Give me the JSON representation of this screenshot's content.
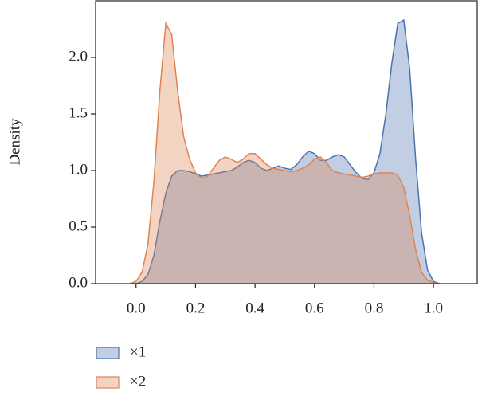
{
  "chart_data": {
    "type": "area",
    "ylabel": "Density",
    "x": [
      -0.02,
      0.0,
      0.02,
      0.04,
      0.06,
      0.08,
      0.1,
      0.12,
      0.14,
      0.16,
      0.18,
      0.2,
      0.22,
      0.24,
      0.26,
      0.28,
      0.3,
      0.32,
      0.34,
      0.36,
      0.38,
      0.4,
      0.42,
      0.44,
      0.46,
      0.48,
      0.5,
      0.52,
      0.54,
      0.56,
      0.58,
      0.6,
      0.62,
      0.64,
      0.66,
      0.68,
      0.7,
      0.72,
      0.74,
      0.76,
      0.78,
      0.8,
      0.82,
      0.84,
      0.86,
      0.88,
      0.9,
      0.92,
      0.94,
      0.96,
      0.98,
      1.0,
      1.02
    ],
    "series": [
      {
        "name": "×1",
        "color": "#4c72b0",
        "values": [
          0,
          0.0,
          0.02,
          0.08,
          0.25,
          0.55,
          0.8,
          0.95,
          1.0,
          1.0,
          0.99,
          0.97,
          0.95,
          0.96,
          0.97,
          0.98,
          0.99,
          1.0,
          1.03,
          1.07,
          1.09,
          1.07,
          1.02,
          1.0,
          1.02,
          1.04,
          1.02,
          1.01,
          1.05,
          1.12,
          1.17,
          1.15,
          1.09,
          1.09,
          1.12,
          1.14,
          1.12,
          1.05,
          0.98,
          0.93,
          0.92,
          0.98,
          1.15,
          1.5,
          1.95,
          2.3,
          2.33,
          1.9,
          1.1,
          0.45,
          0.12,
          0.02,
          0
        ]
      },
      {
        "name": "×2",
        "color": "#dd8452",
        "values": [
          0,
          0.02,
          0.1,
          0.35,
          0.9,
          1.7,
          2.3,
          2.2,
          1.7,
          1.3,
          1.1,
          0.98,
          0.93,
          0.95,
          1.02,
          1.09,
          1.12,
          1.1,
          1.07,
          1.1,
          1.15,
          1.15,
          1.1,
          1.05,
          1.02,
          1.01,
          1.0,
          0.99,
          1.0,
          1.02,
          1.05,
          1.1,
          1.12,
          1.07,
          1.0,
          0.98,
          0.97,
          0.96,
          0.95,
          0.94,
          0.95,
          0.97,
          0.98,
          0.98,
          0.98,
          0.96,
          0.85,
          0.6,
          0.3,
          0.1,
          0.03,
          0.01,
          0
        ]
      }
    ],
    "xlim": [
      -0.136,
      1.147
    ],
    "ylim": [
      0,
      2.5
    ],
    "xticks": [
      {
        "value": 0,
        "label": "0.0"
      },
      0.2,
      0.4,
      0.6,
      0.8,
      {
        "value": 1,
        "label": "1.0"
      }
    ],
    "yticks": [
      {
        "value": 0,
        "label": "0.0"
      },
      0.5,
      {
        "value": 1,
        "label": "1.0"
      },
      1.5,
      {
        "value": 2,
        "label": "2.0"
      }
    ],
    "fill_opacity": 0.35,
    "legend": "below"
  }
}
